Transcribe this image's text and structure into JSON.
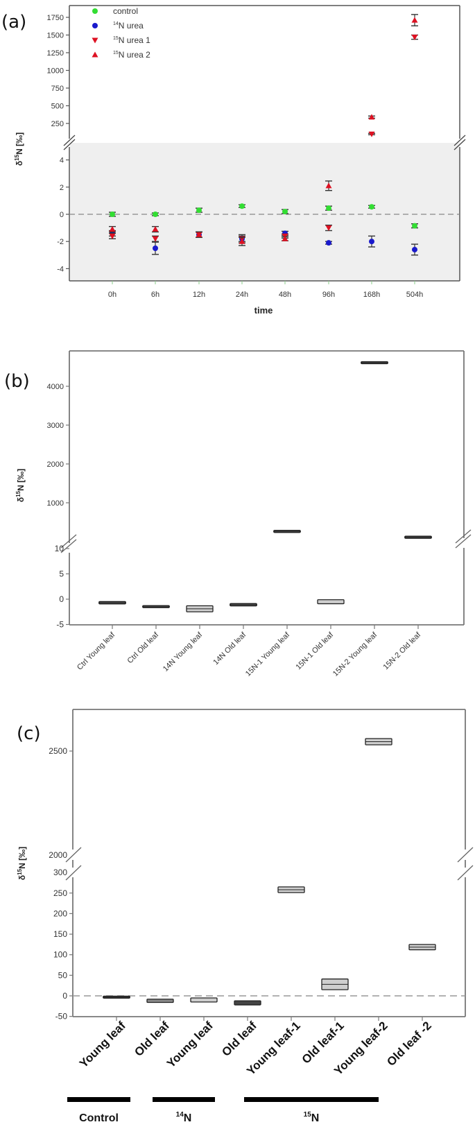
{
  "figure": {
    "panels": [
      {
        "label": "(a)",
        "ylabel_main": "δ",
        "ylabel_sup": "15",
        "ylabel_rest": "N [‰]",
        "xlabel": "time",
        "legend": [
          {
            "name": "control",
            "marker": "circle",
            "color": "#33dd33"
          },
          {
            "name": "N urea",
            "sup": "14",
            "marker": "circle",
            "color": "#1a1acc"
          },
          {
            "name": "N urea 1",
            "sup": "15",
            "marker": "triangle-down",
            "color": "#dd1122"
          },
          {
            "name": "N urea 2",
            "sup": "15",
            "marker": "triangle-up",
            "color": "#dd1122"
          }
        ],
        "upper_ticks": [
          "250",
          "500",
          "750",
          "1000",
          "1250",
          "1500",
          "1750"
        ],
        "lower_ticks": [
          "4",
          "2",
          "0",
          "-2",
          "-4"
        ],
        "categories": [
          "0h",
          "6h",
          "12h",
          "24h",
          "48h",
          "96h",
          "168h",
          "504h"
        ]
      },
      {
        "label": "(b)",
        "ylabel_main": "δ",
        "ylabel_sup": "15",
        "ylabel_rest": "N [‰]",
        "upper_ticks": [
          "1000",
          "2000",
          "3000",
          "4000"
        ],
        "lower_ticks": [
          "10",
          "5",
          "0",
          "-5"
        ],
        "categories": [
          "Ctrl Young leaf",
          "Ctrl Old leaf",
          "14N Young leaf",
          "14N Old leaf",
          "15N-1 Young leaf",
          "15N-1 Old leaf",
          "15N-2 Young leaf",
          "15N-2 Old leaf"
        ]
      },
      {
        "label": "(c)",
        "ylabel_main": "δ",
        "ylabel_sup": "15",
        "ylabel_rest": "N [‰]",
        "upper_ticks": [
          "2000",
          "2500"
        ],
        "lower_ticks": [
          "300",
          "250",
          "200",
          "150",
          "100",
          "50",
          "0",
          "-50"
        ],
        "categories": [
          "Young leaf",
          "Old leaf",
          "Young leaf",
          "Old leaf",
          "Young leaf-1",
          "Old leaf-1",
          "Young leaf-2",
          "Old leaf -2"
        ],
        "groups": [
          {
            "label": "Control",
            "sup": ""
          },
          {
            "label": "N",
            "sup": "14"
          },
          {
            "label": "N",
            "sup": "15"
          }
        ]
      }
    ]
  },
  "chart_data": [
    {
      "type": "scatter",
      "title": "(a)",
      "xlabel": "time",
      "ylabel": "δ15N [‰]",
      "broken_axis": true,
      "ylim_lower": [
        -5,
        5
      ],
      "ylim_upper": [
        100,
        1800
      ],
      "yticks_lower": [
        -4,
        -2,
        0,
        2,
        4
      ],
      "yticks_upper": [
        250,
        500,
        750,
        1000,
        1250,
        1500,
        1750
      ],
      "reference_line": 0,
      "lower_background": "#efefef",
      "legend_position": "upper left",
      "categories": [
        "0h",
        "6h",
        "12h",
        "24h",
        "48h",
        "96h",
        "168h",
        "504h"
      ],
      "series": [
        {
          "name": "control",
          "marker": "circle",
          "color": "#33dd33",
          "values": [
            0.0,
            0.0,
            0.3,
            0.6,
            0.2,
            0.45,
            0.55,
            -0.85
          ],
          "errors": [
            0.15,
            0.1,
            0.15,
            0.1,
            0.15,
            0.15,
            0.1,
            0.15
          ]
        },
        {
          "name": "14N urea",
          "marker": "circle",
          "color": "#1a1acc",
          "values": [
            -1.4,
            -2.5,
            -1.5,
            -1.8,
            -1.4,
            -2.1,
            -2.0,
            -2.6
          ],
          "errors": [
            0.2,
            0.45,
            0.2,
            0.2,
            0.15,
            0.1,
            0.4,
            0.4
          ]
        },
        {
          "name": "15N urea 1",
          "marker": "triangle-down",
          "color": "#dd1122",
          "values": [
            -1.6,
            -1.8,
            -1.5,
            -1.8,
            -1.6,
            -1.0,
            100,
            1470
          ],
          "errors": [
            0.2,
            0.2,
            0.2,
            0.3,
            0.15,
            0.2,
            10,
            30
          ]
        },
        {
          "name": "15N urea 2",
          "marker": "triangle-up",
          "color": "#dd1122",
          "values": [
            -1.1,
            -1.1,
            -1.5,
            -2.0,
            -1.8,
            2.1,
            340,
            1710
          ],
          "errors": [
            0.2,
            0.2,
            0.2,
            0.3,
            0.15,
            0.35,
            15,
            80
          ]
        }
      ]
    },
    {
      "type": "bar",
      "subtype": "box",
      "title": "(b)",
      "xlabel": "",
      "ylabel": "δ15N [‰]",
      "broken_axis": true,
      "ylim_lower": [
        -5,
        10
      ],
      "ylim_upper": [
        10,
        4800
      ],
      "yticks_lower": [
        -5,
        0,
        5,
        10
      ],
      "yticks_upper": [
        1000,
        2000,
        3000,
        4000
      ],
      "categories": [
        "Ctrl Young leaf",
        "Ctrl Old leaf",
        "14N Young leaf",
        "14N Old leaf",
        "15N-1 Young leaf",
        "15N-1 Old leaf",
        "15N-2 Young leaf",
        "15N-2 Old leaf"
      ],
      "values": [
        -0.7,
        -1.4,
        -1.9,
        -1.1,
        280,
        -0.5,
        4620,
        130
      ],
      "ranges": [
        [
          -0.9,
          -0.5
        ],
        [
          -1.5,
          -1.3
        ],
        [
          -2.5,
          -1.3
        ],
        [
          -1.3,
          -0.9
        ],
        [
          275,
          285
        ],
        [
          -0.9,
          -0.1
        ],
        [
          4610,
          4630
        ],
        [
          125,
          135
        ]
      ]
    },
    {
      "type": "bar",
      "subtype": "box",
      "title": "(c)",
      "xlabel": "",
      "ylabel": "δ15N [‰]",
      "broken_axis": true,
      "ylim_lower": [
        -50,
        300
      ],
      "ylim_upper": [
        2000,
        2650
      ],
      "yticks_lower": [
        -50,
        0,
        50,
        100,
        150,
        200,
        250,
        300
      ],
      "yticks_upper": [
        2000,
        2500
      ],
      "reference_line": 0,
      "categories": [
        "Young leaf",
        "Old leaf",
        "Young leaf",
        "Old leaf",
        "Young leaf-1",
        "Old leaf-1",
        "Young leaf-2",
        "Old leaf -2"
      ],
      "groups": [
        {
          "name": "Control",
          "categories": [
            0,
            1
          ]
        },
        {
          "name": "14N",
          "categories": [
            2,
            3
          ]
        },
        {
          "name": "15N",
          "categories": [
            4,
            5,
            6,
            7
          ]
        }
      ],
      "values": [
        -3,
        -12,
        -10,
        -17,
        258,
        28,
        2545,
        118
      ],
      "ranges": [
        [
          -5,
          -1
        ],
        [
          -16,
          -8
        ],
        [
          -15,
          -5
        ],
        [
          -22,
          -12
        ],
        [
          251,
          265
        ],
        [
          15,
          41
        ],
        [
          2530,
          2560
        ],
        [
          112,
          125
        ]
      ]
    }
  ]
}
